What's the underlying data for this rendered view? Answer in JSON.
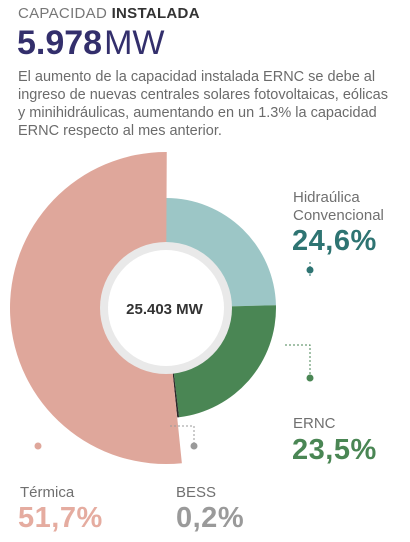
{
  "header": {
    "kicker_light": "CAPACIDAD",
    "kicker_bold": "INSTALADA",
    "value": "5.978",
    "unit": "MW",
    "description": "El aumento de la capacidad instalada ERNC se debe al ingreso de nuevas centrales solares fotovoltaicas, eólicas y minihidráulicas, aumentando en un 1.3% la capacidad ERNC respecto al mes anterior."
  },
  "chart_data": {
    "type": "pie",
    "center_label": "25.403 MW",
    "slices": [
      {
        "name": "Hidraúlica Convencional",
        "label_lines": [
          "Hidraúlica",
          "Convencional"
        ],
        "value": 24.6,
        "display": "24,6%",
        "color": "#9cc6c6"
      },
      {
        "name": "ERNC",
        "label_lines": [
          "ERNC"
        ],
        "value": 23.5,
        "display": "23,5%",
        "color": "#4a8654"
      },
      {
        "name": "BESS",
        "label_lines": [
          "BESS"
        ],
        "value": 0.2,
        "display": "0,2%",
        "color": "#2b2b2b"
      },
      {
        "name": "Térmica",
        "label_lines": [
          "Térmica"
        ],
        "value": 51.7,
        "display": "51,7%",
        "color": "#dfa79b"
      }
    ]
  }
}
